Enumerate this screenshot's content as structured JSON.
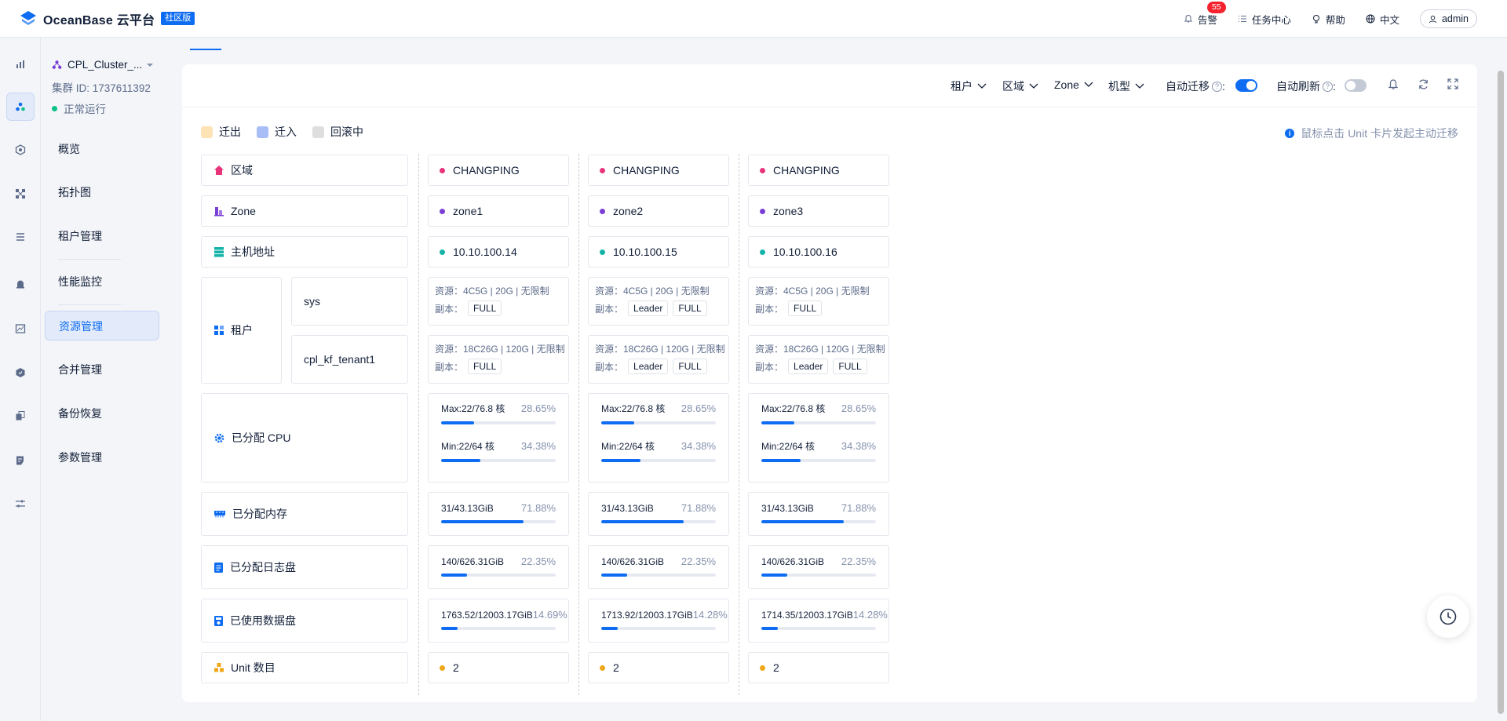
{
  "app": {
    "name": "OceanBase 云平台",
    "edition": "社区版"
  },
  "top": {
    "alarm_label": "告警",
    "alarm_count": "55",
    "task_label": "任务中心",
    "help_label": "帮助",
    "lang_label": "中文",
    "user_label": "admin"
  },
  "cluster": {
    "name": "CPL_Cluster_...",
    "id": "集群 ID: 1737611392",
    "status": "正常运行"
  },
  "nav": [
    {
      "label": "概览"
    },
    {
      "label": "拓扑图"
    },
    {
      "label": "租户管理"
    },
    {
      "label": "性能监控"
    },
    {
      "label": "资源管理"
    },
    {
      "label": "合并管理"
    },
    {
      "label": "备份恢复"
    },
    {
      "label": "参数管理"
    }
  ],
  "toolbar": {
    "filters": [
      "租户",
      "区域",
      "Zone",
      "机型"
    ],
    "auto_migrate": "自动迁移",
    "auto_refresh": "自动刷新",
    "auto_migrate_on": true,
    "auto_refresh_on": false
  },
  "legend": [
    {
      "label": "迁出",
      "color": "#fde3b5"
    },
    {
      "label": "迁入",
      "color": "#a9bdf7"
    },
    {
      "label": "回滚中",
      "color": "#dedede"
    }
  ],
  "hint": "鼠标点击 Unit 卡片发起主动迁移",
  "rows": {
    "region": "区域",
    "zone": "Zone",
    "host": "主机地址",
    "tenant": "租户",
    "cpu": "已分配 CPU",
    "memory": "已分配内存",
    "log_disk": "已分配日志盘",
    "data_disk": "已使用数据盘",
    "unit_count": "Unit 数目"
  },
  "tenants": [
    "sys",
    "cpl_kf_tenant1"
  ],
  "replica_label": "副本：",
  "columns": [
    {
      "region": "CHANGPING",
      "zone": "zone1",
      "host": "10.10.100.14",
      "tenant_res": [
        "资源：4C5G | 20G | 无限制",
        "资源：18C26G | 120G | 无限制"
      ],
      "tenant_tags": [
        [
          "FULL"
        ],
        [
          "FULL"
        ]
      ],
      "cpu_max": "Max:22/76.8 核",
      "cpu_max_pct": "28.65%",
      "cpu_max_v": 28.65,
      "cpu_min": "Min:22/64 核",
      "cpu_min_pct": "34.38%",
      "cpu_min_v": 34.38,
      "mem": "31/43.13GiB",
      "mem_pct": "71.88%",
      "mem_v": 71.88,
      "log": "140/626.31GiB",
      "log_pct": "22.35%",
      "log_v": 22.35,
      "data": "1763.52/12003.17GiB",
      "data_pct": "14.69%",
      "data_v": 14.69,
      "units": "2"
    },
    {
      "region": "CHANGPING",
      "zone": "zone2",
      "host": "10.10.100.15",
      "tenant_res": [
        "资源：4C5G | 20G | 无限制",
        "资源：18C26G | 120G | 无限制"
      ],
      "tenant_tags": [
        [
          "Leader",
          "FULL"
        ],
        [
          "Leader",
          "FULL"
        ]
      ],
      "cpu_max": "Max:22/76.8 核",
      "cpu_max_pct": "28.65%",
      "cpu_max_v": 28.65,
      "cpu_min": "Min:22/64 核",
      "cpu_min_pct": "34.38%",
      "cpu_min_v": 34.38,
      "mem": "31/43.13GiB",
      "mem_pct": "71.88%",
      "mem_v": 71.88,
      "log": "140/626.31GiB",
      "log_pct": "22.35%",
      "log_v": 22.35,
      "data": "1713.92/12003.17GiB",
      "data_pct": "14.28%",
      "data_v": 14.28,
      "units": "2"
    },
    {
      "region": "CHANGPING",
      "zone": "zone3",
      "host": "10.10.100.16",
      "tenant_res": [
        "资源：4C5G | 20G | 无限制",
        "资源：18C26G | 120G | 无限制"
      ],
      "tenant_tags": [
        [
          "FULL"
        ],
        [
          "Leader",
          "FULL"
        ]
      ],
      "cpu_max": "Max:22/76.8 核",
      "cpu_max_pct": "28.65%",
      "cpu_max_v": 28.65,
      "cpu_min": "Min:22/64 核",
      "cpu_min_pct": "34.38%",
      "cpu_min_v": 34.38,
      "mem": "31/43.13GiB",
      "mem_pct": "71.88%",
      "mem_v": 71.88,
      "log": "140/626.31GiB",
      "log_pct": "22.35%",
      "log_v": 22.35,
      "data": "1714.35/12003.17GiB",
      "data_pct": "14.28%",
      "data_v": 14.28,
      "units": "2"
    }
  ],
  "colors": {
    "accent": "#0d6cf2",
    "region_dot": "#e8347b",
    "zone_dot": "#7a3fd6",
    "host_dot": "#13b3a8",
    "unit_dot": "#f0a81a"
  }
}
